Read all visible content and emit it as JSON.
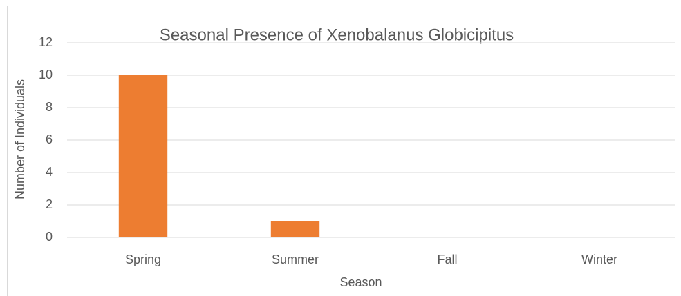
{
  "chart_data": {
    "type": "bar",
    "title": "Seasonal Presence of Xenobalanus Globicipitus",
    "x_label": "Season",
    "y_label": "Number of Individuals",
    "categories": [
      "Spring",
      "Summer",
      "Fall",
      "Winter"
    ],
    "values": [
      10,
      1,
      0,
      0
    ],
    "color": "#ed7d31",
    "ylim": [
      0,
      12
    ],
    "yticks": [
      0,
      2,
      4,
      6,
      8,
      10,
      12
    ],
    "grid": true
  }
}
